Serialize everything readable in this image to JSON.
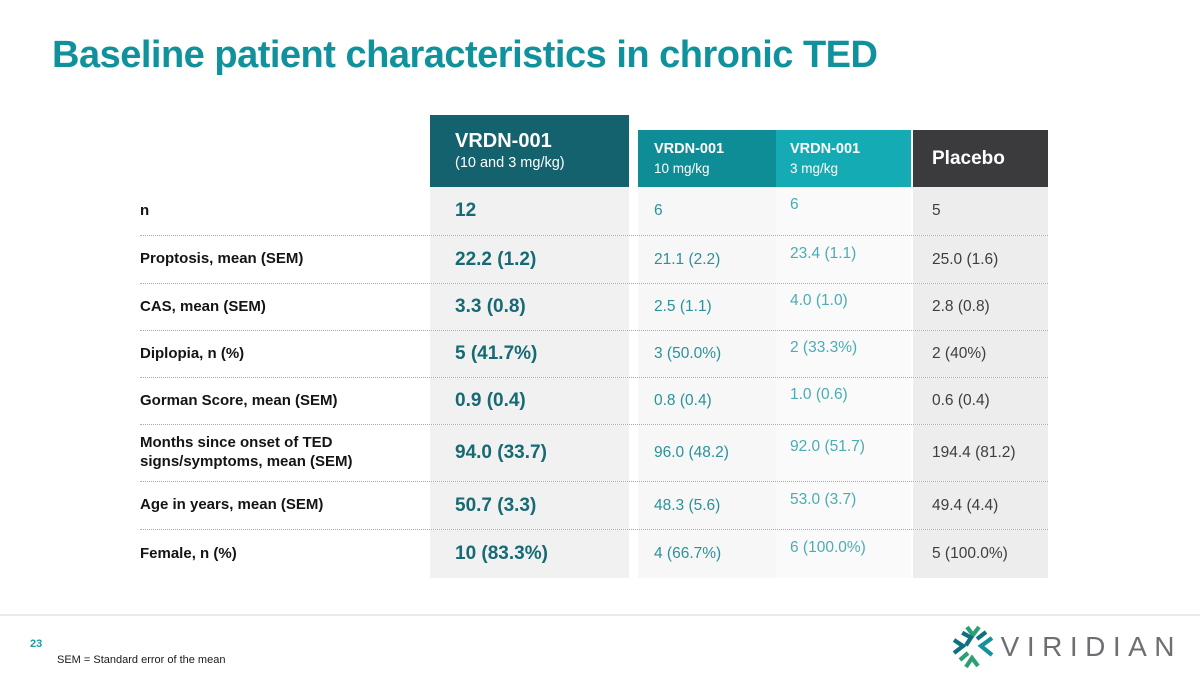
{
  "slide": {
    "title": "Baseline patient characteristics in chronic TED",
    "page_number": "23",
    "footnote": "SEM = Standard error of the mean"
  },
  "logo": {
    "text": "VIRIDIAN",
    "mark_icon": "starburst-asterisk-icon"
  },
  "colors": {
    "title_teal": "#10929d",
    "header_combined_bg": "#14626d",
    "header_10mg_bg": "#0f8d96",
    "header_3mg_bg": "#14abb5",
    "header_placebo_bg": "#3b3b3d",
    "value_combined_text": "#156a74",
    "value_10mg_text": "#2a929b",
    "value_3mg_text": "#4aacb4",
    "value_placebo_text": "#3d3e40",
    "logo_gray": "#6e6f72"
  },
  "table": {
    "columns": [
      {
        "title": "VRDN-001",
        "subtitle": "(10 and 3 mg/kg)"
      },
      {
        "title": "VRDN-001",
        "subtitle": "10 mg/kg"
      },
      {
        "title": "VRDN-001",
        "subtitle": "3 mg/kg"
      },
      {
        "title": "Placebo",
        "subtitle": ""
      }
    ],
    "rows": [
      {
        "label": "n",
        "values": [
          "12",
          "6",
          "6",
          "5"
        ]
      },
      {
        "label": "Proptosis, mean (SEM)",
        "values": [
          "22.2 (1.2)",
          "21.1 (2.2)",
          "23.4 (1.1)",
          "25.0 (1.6)"
        ]
      },
      {
        "label": "CAS, mean (SEM)",
        "values": [
          "3.3 (0.8)",
          "2.5 (1.1)",
          "4.0 (1.0)",
          "2.8 (0.8)"
        ]
      },
      {
        "label": "Diplopia, n (%)",
        "values": [
          "5 (41.7%)",
          "3 (50.0%)",
          "2 (33.3%)",
          "2 (40%)"
        ]
      },
      {
        "label": "Gorman Score, mean (SEM)",
        "values": [
          "0.9 (0.4)",
          "0.8 (0.4)",
          "1.0 (0.6)",
          "0.6 (0.4)"
        ]
      },
      {
        "label": "Months since onset of TED signs/symptoms, mean (SEM)",
        "values": [
          "94.0 (33.7)",
          "96.0 (48.2)",
          "92.0 (51.7)",
          "194.4 (81.2)"
        ]
      },
      {
        "label": "Age in years,  mean (SEM)",
        "values": [
          "50.7 (3.3)",
          "48.3 (5.6)",
          "53.0 (3.7)",
          "49.4 (4.4)"
        ]
      },
      {
        "label": "Female, n (%)",
        "values": [
          "10 (83.3%)",
          "4 (66.7%)",
          "6 (100.0%)",
          "5 (100.0%)"
        ]
      }
    ]
  }
}
